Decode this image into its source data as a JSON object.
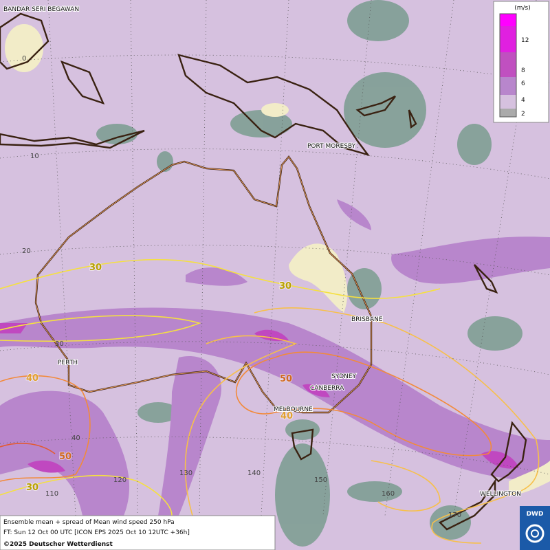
{
  "cities": [
    "BANDAR SERI BEGAWAN",
    "PORT MORESBY",
    "BRISBANE",
    "PERTH",
    "SYDNEY",
    "CANBERRA",
    "MELBOURNE",
    "WELLINGTON"
  ],
  "latitude_labels": [
    "0",
    "10",
    "20",
    "30",
    "40"
  ],
  "longitude_labels": [
    "110",
    "120",
    "130",
    "140",
    "150",
    "160",
    "170"
  ],
  "contour_labels": [
    "30",
    "30",
    "40",
    "50",
    "50",
    "40",
    "30"
  ],
  "legend": {
    "unit": "(m/s)",
    "levels": [
      "12",
      "8",
      "6",
      "4",
      "2"
    ]
  },
  "footer": {
    "title": "Ensemble mean + spread of Mean wind speed 250 hPa",
    "forecast": "FT: Sun 12 Oct 00 UTC [ICON EPS 2025 Oct 10 12UTC +36h]",
    "copyright": "©2025 Deutscher Wetterdienst"
  },
  "logo": "DWD"
}
